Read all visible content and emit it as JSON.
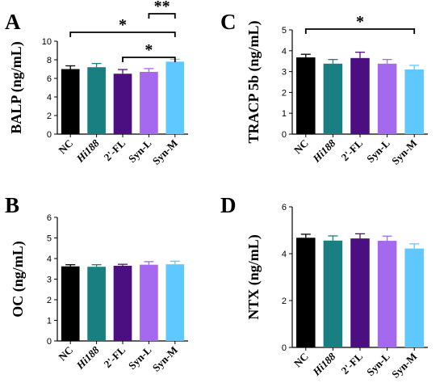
{
  "chart_data": [
    {
      "type": "bar",
      "panel": "A",
      "ylabel": "BALP (ng/mL)",
      "categories": [
        "NC",
        "Hi188",
        "2'-FL",
        "Syn-L",
        "Syn-M"
      ],
      "values": [
        7.0,
        7.2,
        6.5,
        6.7,
        7.8
      ],
      "errors": [
        0.35,
        0.4,
        0.45,
        0.35,
        0.25
      ],
      "ylim": [
        0,
        10
      ],
      "yticks": [
        "0",
        "2",
        "4",
        "6",
        "8",
        "10"
      ],
      "significance": [
        {
          "from": "NC",
          "to": "Syn-M",
          "label": "*"
        },
        {
          "from": "Syn-L",
          "to": "Syn-M",
          "label": "**"
        },
        {
          "from": "2'-FL",
          "to": "Syn-M",
          "label": "*"
        }
      ]
    },
    {
      "type": "bar",
      "panel": "C",
      "ylabel": "TRACP 5b (ng/mL)",
      "categories": [
        "NC",
        "Hi188",
        "2'-FL",
        "Syn-L",
        "Syn-M"
      ],
      "values": [
        3.68,
        3.38,
        3.65,
        3.38,
        3.1
      ],
      "errors": [
        0.15,
        0.2,
        0.28,
        0.2,
        0.2
      ],
      "ylim": [
        0,
        5
      ],
      "yticks": [
        "0",
        "1",
        "2",
        "3",
        "4",
        "5"
      ],
      "significance": [
        {
          "from": "NC",
          "to": "Syn-M",
          "label": "*"
        }
      ]
    },
    {
      "type": "bar",
      "panel": "B",
      "ylabel": "OC (ng/mL)",
      "categories": [
        "NC",
        "Hi188",
        "2'-FL",
        "Syn-L",
        "Syn-M"
      ],
      "values": [
        3.62,
        3.6,
        3.65,
        3.7,
        3.72
      ],
      "errors": [
        0.08,
        0.1,
        0.07,
        0.15,
        0.15
      ],
      "ylim": [
        0,
        6
      ],
      "yticks": [
        "0",
        "1",
        "2",
        "3",
        "4",
        "5",
        "6"
      ],
      "significance": []
    },
    {
      "type": "bar",
      "panel": "D",
      "ylabel": "NTX (ng/mL)",
      "categories": [
        "NC",
        "Hi188",
        "2'-FL",
        "Syn-L",
        "Syn-M"
      ],
      "values": [
        4.68,
        4.56,
        4.65,
        4.55,
        4.22
      ],
      "errors": [
        0.15,
        0.2,
        0.2,
        0.2,
        0.2
      ],
      "ylim": [
        0,
        6
      ],
      "yticks": [
        "0",
        "2",
        "4",
        "6"
      ],
      "significance": []
    }
  ],
  "colors": [
    "#000000",
    "#1a7f80",
    "#4b0f82",
    "#a569f0",
    "#5fc8ff"
  ],
  "italic_categories": [
    "Hi188"
  ]
}
